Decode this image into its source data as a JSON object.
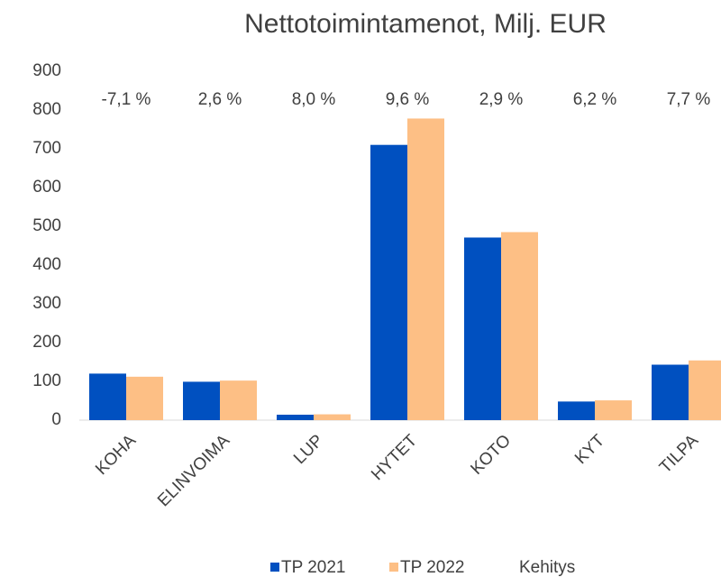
{
  "chart_data": {
    "type": "bar",
    "title": "Nettotoimintamenot, Milj. EUR",
    "categories": [
      "KOHA",
      "ELINVOIMA",
      "LUP",
      "HYTET",
      "KOTO",
      "KYT",
      "TILPA"
    ],
    "series": [
      {
        "name": "TP 2021",
        "color": "#0050c0",
        "values": [
          120,
          99,
          14,
          710,
          471,
          48,
          143
        ]
      },
      {
        "name": "TP 2022",
        "color": "#fdbf85",
        "values": [
          112,
          102,
          15,
          778,
          485,
          51,
          154
        ]
      },
      {
        "name": "Kehitys",
        "values": [
          -7.1,
          2.6,
          8.0,
          9.6,
          2.9,
          6.2,
          7.7
        ],
        "value_labels": [
          "-7,1 %",
          "2,6 %",
          "8,0 %",
          "9,6 %",
          "2,9 %",
          "6,2 %",
          "7,7 %"
        ]
      }
    ],
    "ylim": [
      0,
      900
    ],
    "yticks": [
      0,
      100,
      200,
      300,
      400,
      500,
      600,
      700,
      800,
      900
    ],
    "grid": false
  }
}
